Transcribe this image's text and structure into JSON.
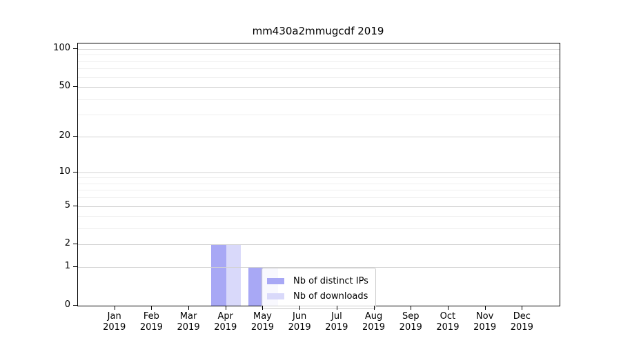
{
  "title": "mm430a2mmugcdf 2019",
  "chart_data": {
    "type": "bar",
    "title": "mm430a2mmugcdf 2019",
    "categories": [
      "Jan",
      "Feb",
      "Mar",
      "Apr",
      "May",
      "Jun",
      "Jul",
      "Aug",
      "Sep",
      "Oct",
      "Nov",
      "Dec"
    ],
    "x_tick_year": "2019",
    "series": [
      {
        "name": "Nb of distinct IPs",
        "color": "#a8a8f5",
        "values": [
          0,
          0,
          0,
          2,
          1,
          0,
          0,
          0,
          0,
          0,
          0,
          0
        ]
      },
      {
        "name": "Nb of downloads",
        "color": "#d9d9fa",
        "values": [
          0,
          0,
          0,
          2,
          1,
          0,
          0,
          0,
          0,
          0,
          0,
          0
        ]
      }
    ],
    "yscale": "log1p",
    "ylim": [
      0,
      110
    ],
    "y_major_ticks": [
      0,
      1,
      2,
      5,
      10,
      20,
      50,
      100
    ],
    "y_major_tick_labels": [
      "0",
      "1",
      "2",
      "5",
      "10",
      "20",
      "50",
      "100"
    ],
    "y_minor_ticks": [
      3,
      4,
      6,
      7,
      8,
      9,
      30,
      40,
      60,
      70,
      80,
      90
    ],
    "xlabel": "",
    "ylabel": "",
    "grid": "both, horizontal only, drawn above bars",
    "legend_position": "lower center inside plot",
    "colors": {
      "axis": "#000000",
      "grid_major": "#d2d2d2",
      "grid_minor": "#efefef",
      "legend_border": "#cccccc",
      "background": "#ffffff"
    }
  }
}
